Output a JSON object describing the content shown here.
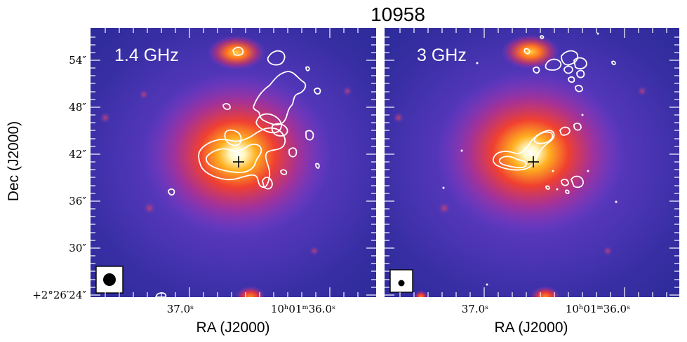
{
  "figure": {
    "title": "10958",
    "x_axis_label": "RA (J2000)",
    "y_axis_label": "Dec (J2000)",
    "x_tick_labels": [
      "37.0ˢ",
      "10ʰ01ᵐ36.0ˢ"
    ],
    "y_tick_labels": [
      "+2°26′24″",
      "30″",
      "36″",
      "42″",
      "48″",
      "54″"
    ]
  },
  "panels": [
    {
      "label": "1.4 GHz",
      "marker": "source-position-cross",
      "beam": "large-circle"
    },
    {
      "label": "3 GHz",
      "marker": "source-position-cross",
      "beam": "small-circle"
    }
  ],
  "colors": {
    "background_outer": "#2a2aa0",
    "halo": "#7a3acd",
    "mid": "#e0304a",
    "core": "#ffa020",
    "peak": "#ffffff",
    "contour": "#ffffff"
  }
}
